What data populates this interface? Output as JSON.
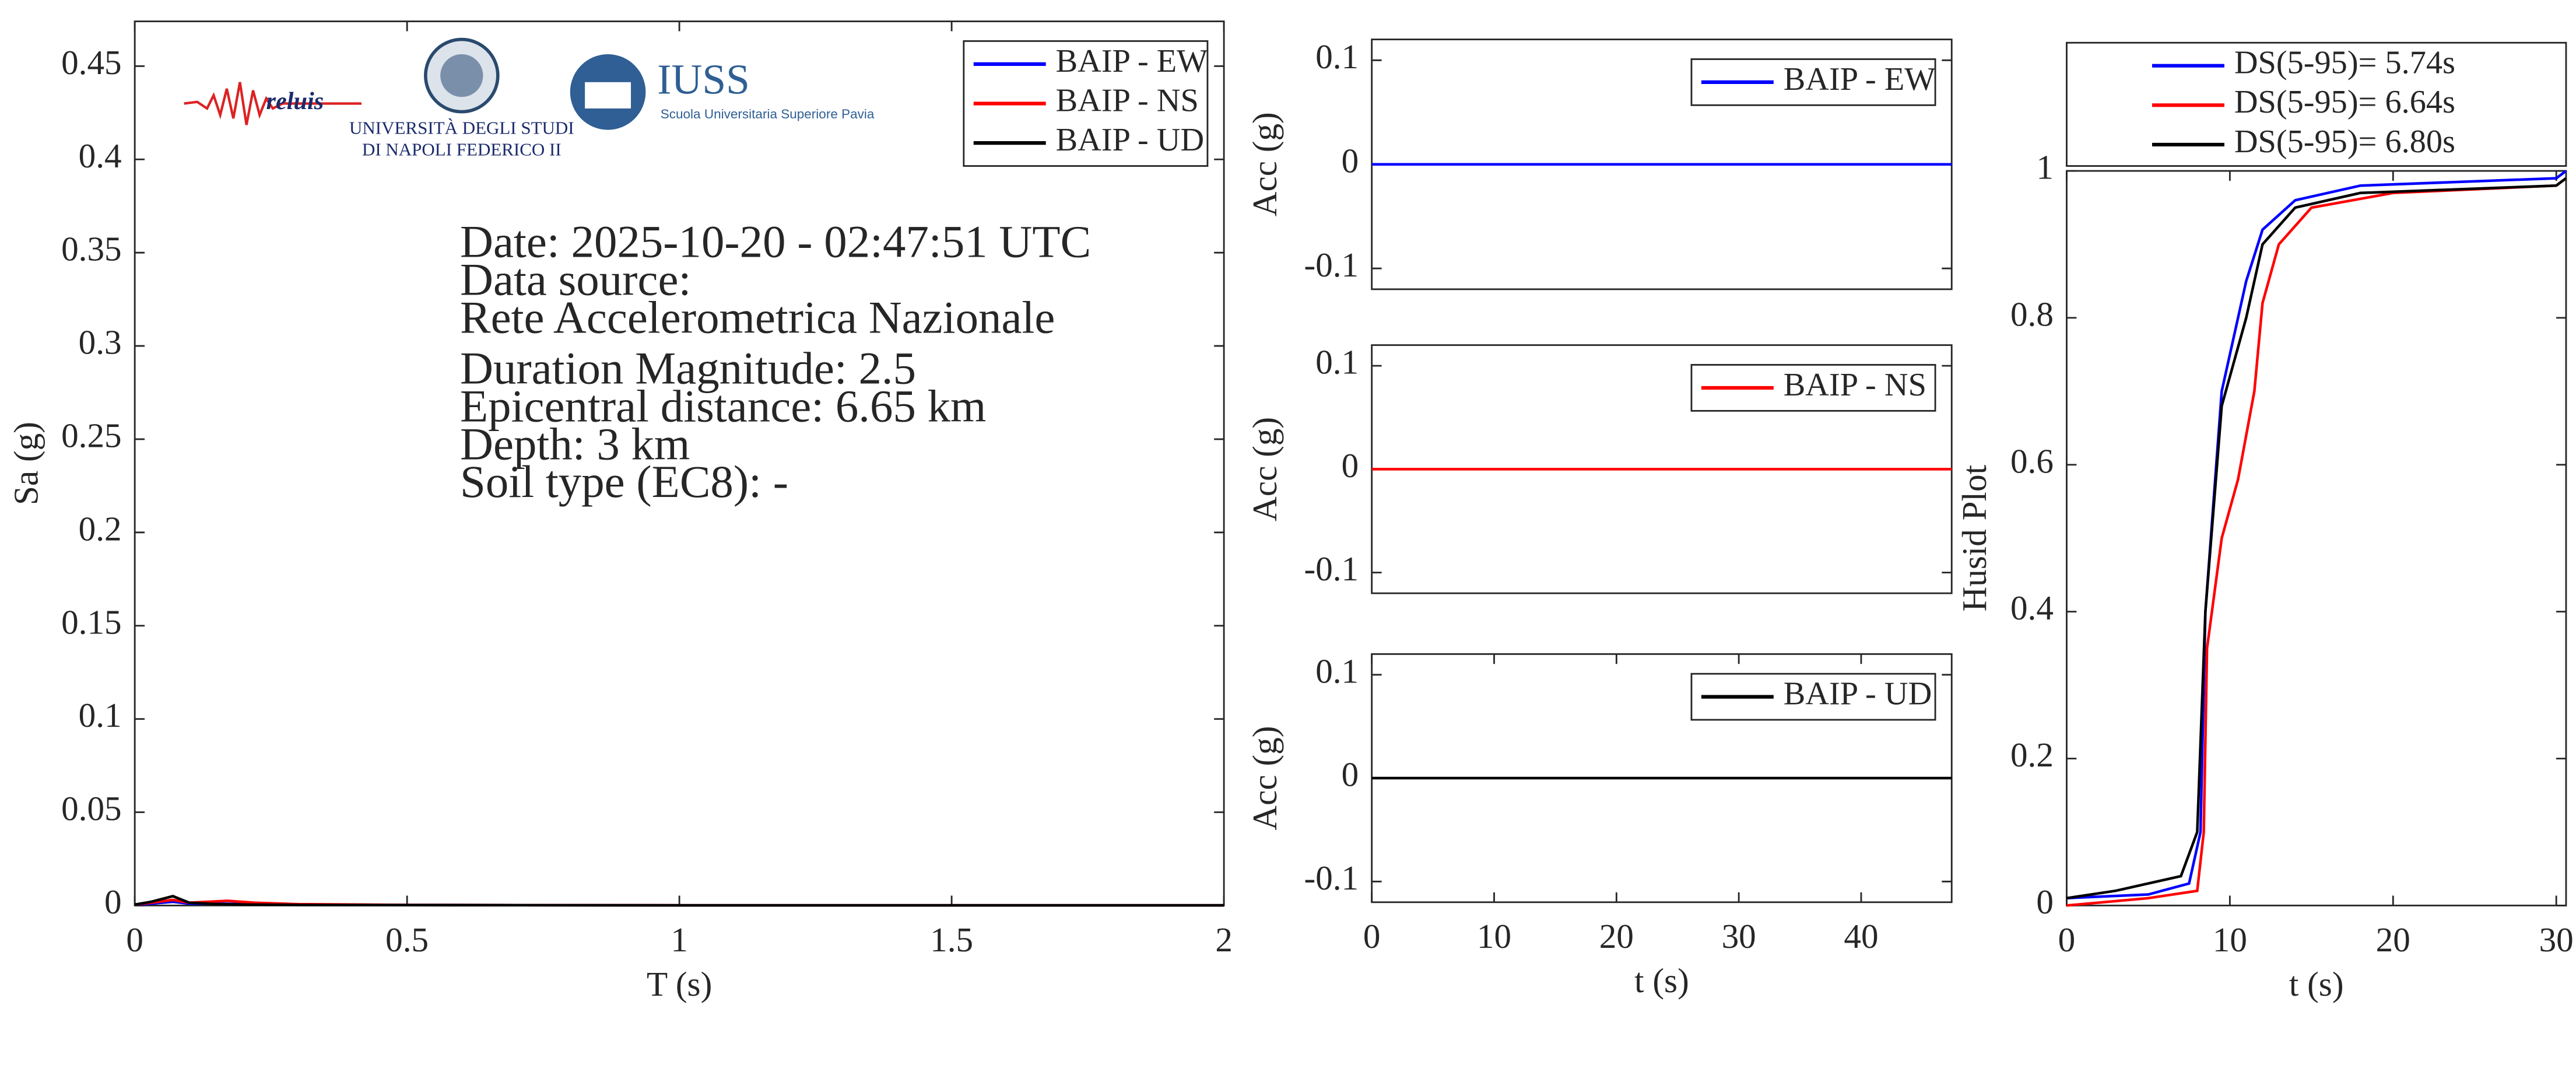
{
  "logos": {
    "reluis": "reluis",
    "naples_line1": "UNIVERSITÀ DEGLI STUDI",
    "naples_line2": "DI NAPOLI FEDERICO II",
    "iuss": "IUSS",
    "iuss_sub": "Scuola Universitaria Superiore Pavia"
  },
  "chart_data": [
    {
      "type": "line",
      "xlabel": "T (s)",
      "ylabel": "Sa (g)",
      "xlim": [
        0,
        2
      ],
      "ylim": [
        0,
        0.474
      ],
      "xticks": [
        0,
        0.5,
        1,
        1.5,
        2
      ],
      "yticks": [
        0,
        0.05,
        0.1,
        0.15,
        0.2,
        0.25,
        0.3,
        0.35,
        0.4,
        0.45
      ],
      "legend": "top-right",
      "annotations": [
        "Date: 2025-10-20 - 02:47:51 UTC",
        "Data source:",
        "Rete Accelerometrica Nazionale",
        "Duration Magnitude: 2.5",
        "Epicentral distance: 6.65 km",
        "Depth: 3 km",
        "Soil type (EC8): -"
      ],
      "series": [
        {
          "name": "BAIP - EW",
          "color": "#0000ff",
          "x": [
            0,
            0.03,
            0.07,
            0.1,
            0.15,
            0.2,
            0.3,
            0.5,
            1,
            2
          ],
          "values": [
            0.0005,
            0.001,
            0.002,
            0.001,
            0.001,
            0.0008,
            0.0005,
            0.0003,
            0.0001,
            0.0001
          ]
        },
        {
          "name": "BAIP - NS",
          "color": "#ff0000",
          "x": [
            0,
            0.03,
            0.07,
            0.1,
            0.17,
            0.22,
            0.3,
            0.5,
            1,
            2
          ],
          "values": [
            0.0005,
            0.0015,
            0.003,
            0.0015,
            0.0025,
            0.0015,
            0.0007,
            0.0003,
            0.0001,
            0.0001
          ]
        },
        {
          "name": "BAIP - UD",
          "color": "#000000",
          "x": [
            0,
            0.03,
            0.07,
            0.1,
            0.15,
            0.2,
            0.3,
            0.5,
            1,
            2
          ],
          "values": [
            0.0005,
            0.002,
            0.005,
            0.0015,
            0.0008,
            0.0005,
            0.0003,
            0.0002,
            0.0001,
            0.0001
          ]
        }
      ]
    },
    {
      "type": "line",
      "ylabel": "Acc (g)",
      "xlim": [
        0,
        47.4
      ],
      "ylim": [
        -0.12,
        0.12
      ],
      "yticks": [
        -0.1,
        0,
        0.1
      ],
      "legend": "top-right",
      "series": [
        {
          "name": "BAIP - EW",
          "color": "#0000ff",
          "x": [
            0,
            10,
            20,
            30,
            40,
            47.4
          ],
          "values": [
            0,
            0,
            0,
            0,
            0,
            0
          ]
        }
      ]
    },
    {
      "type": "line",
      "ylabel": "Acc (g)",
      "xlim": [
        0,
        47.4
      ],
      "ylim": [
        -0.12,
        0.12
      ],
      "yticks": [
        -0.1,
        0,
        0.1
      ],
      "legend": "top-right",
      "series": [
        {
          "name": "BAIP - NS",
          "color": "#ff0000",
          "x": [
            0,
            10,
            20,
            30,
            40,
            47.4
          ],
          "values": [
            0,
            0,
            0,
            0,
            0,
            0
          ]
        }
      ]
    },
    {
      "type": "line",
      "xlabel": "t (s)",
      "ylabel": "Acc (g)",
      "xlim": [
        0,
        47.4
      ],
      "ylim": [
        -0.12,
        0.12
      ],
      "xticks": [
        0,
        10,
        20,
        30,
        40
      ],
      "yticks": [
        -0.1,
        0,
        0.1
      ],
      "legend": "top-right",
      "series": [
        {
          "name": "BAIP - UD",
          "color": "#000000",
          "x": [
            0,
            10,
            20,
            30,
            40,
            47.4
          ],
          "values": [
            0,
            0,
            0,
            0,
            0,
            0
          ]
        }
      ]
    },
    {
      "type": "line",
      "xlabel": "t (s)",
      "ylabel": "Husid Plot",
      "xlim": [
        0,
        30.6
      ],
      "ylim": [
        0,
        1
      ],
      "xticks": [
        0,
        10,
        20,
        30
      ],
      "yticks": [
        0,
        0.2,
        0.4,
        0.6,
        0.8,
        1
      ],
      "legend": "outside-top",
      "series": [
        {
          "name": "DS(5-95)= 5.74s",
          "color": "#0000ff",
          "x": [
            0,
            5,
            7.5,
            8.2,
            8.5,
            9.5,
            11,
            12,
            14,
            18,
            30,
            30.6
          ],
          "values": [
            0.01,
            0.015,
            0.03,
            0.1,
            0.4,
            0.7,
            0.85,
            0.92,
            0.96,
            0.98,
            0.99,
            1
          ]
        },
        {
          "name": "DS(5-95)= 6.64s",
          "color": "#ff0000",
          "x": [
            0,
            5,
            8,
            8.4,
            8.6,
            9.5,
            10.5,
            11.5,
            12,
            13,
            15,
            20,
            30,
            30.6
          ],
          "values": [
            0,
            0.01,
            0.02,
            0.1,
            0.35,
            0.5,
            0.58,
            0.7,
            0.82,
            0.9,
            0.95,
            0.97,
            0.98,
            0.99
          ]
        },
        {
          "name": "DS(5-95)= 6.80s",
          "color": "#000000",
          "x": [
            0,
            3,
            7,
            8,
            8.5,
            9.5,
            11,
            12,
            14,
            18,
            30,
            30.6
          ],
          "values": [
            0.01,
            0.02,
            0.04,
            0.1,
            0.4,
            0.68,
            0.8,
            0.9,
            0.95,
            0.97,
            0.98,
            0.99
          ]
        }
      ]
    }
  ]
}
